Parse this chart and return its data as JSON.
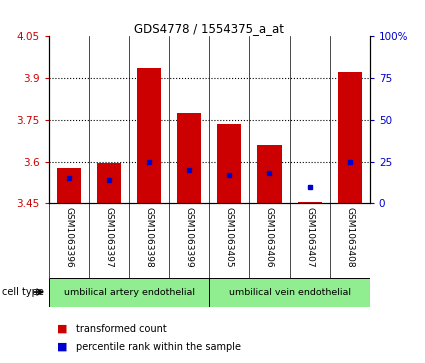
{
  "title": "GDS4778 / 1554375_a_at",
  "samples": [
    "GSM1063396",
    "GSM1063397",
    "GSM1063398",
    "GSM1063399",
    "GSM1063405",
    "GSM1063406",
    "GSM1063407",
    "GSM1063408"
  ],
  "red_values": [
    3.575,
    3.595,
    3.935,
    3.775,
    3.735,
    3.66,
    3.455,
    3.92
  ],
  "blue_values_pct": [
    15,
    14,
    25,
    20,
    17,
    18,
    10,
    25
  ],
  "ymin": 3.45,
  "ymax": 4.05,
  "y_ticks": [
    3.45,
    3.6,
    3.75,
    3.9,
    4.05
  ],
  "y_tick_labels": [
    "3.45",
    "3.6",
    "3.75",
    "3.9",
    "4.05"
  ],
  "right_y_ticks": [
    0,
    25,
    50,
    75,
    100
  ],
  "right_y_tick_labels": [
    "0",
    "25",
    "50",
    "75",
    "100%"
  ],
  "group1_label": "umbilical artery endothelial",
  "group2_label": "umbilical vein endothelial",
  "group1_count": 4,
  "group2_count": 4,
  "cell_type_label": "cell type",
  "legend_red": "transformed count",
  "legend_blue": "percentile rank within the sample",
  "bar_base": 3.45,
  "bar_width": 0.6,
  "left_axis_color": "#cc0000",
  "right_axis_color": "#0000cc",
  "bar_color": "#cc0000",
  "dot_color": "#0000cc",
  "group_bg": "#90ee90",
  "plot_bg": "#ffffff",
  "tick_area_bg": "#c8c8c8",
  "grid_yticks": [
    3.6,
    3.75,
    3.9
  ]
}
